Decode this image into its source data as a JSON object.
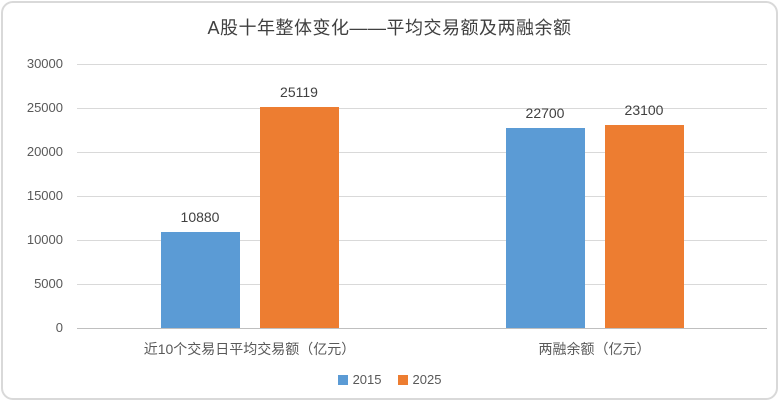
{
  "chart_data": {
    "type": "bar",
    "title": "A股十年整体变化——平均交易额及两融余额",
    "categories": [
      "近10个交易日平均交易额（亿元）",
      "两融余额（亿元）"
    ],
    "series": [
      {
        "name": "2015",
        "color": "#5B9BD5",
        "values": [
          10880,
          22700
        ]
      },
      {
        "name": "2025",
        "color": "#ED7D31",
        "values": [
          25119,
          23100
        ]
      }
    ],
    "ylim": [
      0,
      30000
    ],
    "yticks": [
      0,
      5000,
      10000,
      15000,
      20000,
      25000,
      30000
    ],
    "grid": true,
    "show_data_labels": true,
    "legend_position": "bottom"
  },
  "colors": {
    "background": "#FFFFFF",
    "frame_border": "#D9D9D9",
    "gridline": "#D9D9D9",
    "axis_line": "#BFBFBF",
    "title_text": "#404040",
    "axis_text": "#595959",
    "data_label_text": "#404040"
  }
}
